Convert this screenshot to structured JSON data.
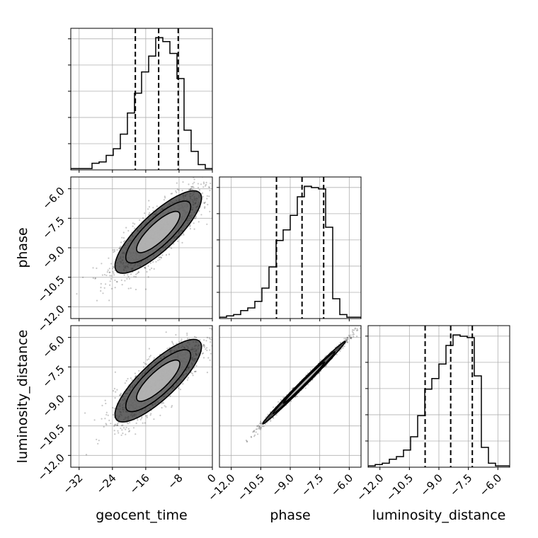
{
  "chart_data": {
    "type": "corner",
    "parameters": [
      "geocent_time",
      "phase",
      "luminosity_distance"
    ],
    "xlabels": [
      "geocent_time",
      "phase",
      "luminosity_distance"
    ],
    "ylabels": [
      "",
      "phase",
      "luminosity_distance"
    ],
    "ranges": {
      "geocent_time": [
        -34,
        0
      ],
      "phase": [
        -12.6,
        -5.4
      ],
      "luminosity_distance": [
        -12.6,
        -5.4
      ]
    },
    "ticks": {
      "geocent_time": [
        "-32",
        "-24",
        "-16",
        "-8",
        "0"
      ],
      "phase": [
        "-12.0",
        "-10.5",
        "-9.0",
        "-7.5",
        "-6.0"
      ],
      "luminosity_distance": [
        "-12.0",
        "-10.5",
        "-9.0",
        "-7.5",
        "-6.0"
      ]
    },
    "grid": true,
    "quantiles": {
      "geocent_time": [
        -18.5,
        -12.9,
        -8.2
      ],
      "phase": [
        -9.7,
        -8.4,
        -7.3
      ],
      "luminosity_distance": [
        -9.7,
        -8.4,
        -7.3
      ]
    },
    "histograms": {
      "geocent_time": {
        "bin_edges": [
          -34,
          -32.3,
          -30.6,
          -28.9,
          -27.2,
          -25.5,
          -23.8,
          -22.1,
          -20.4,
          -18.7,
          -17,
          -15.3,
          -13.6,
          -11.9,
          -10.2,
          -8.5,
          -6.8,
          -5.1,
          -3.4,
          -1.7,
          0
        ],
        "counts": [
          0.01,
          0.01,
          0.01,
          0.05,
          0.06,
          0.11,
          0.16,
          0.27,
          0.43,
          0.58,
          0.74,
          0.86,
          1.0,
          0.97,
          0.88,
          0.69,
          0.3,
          0.14,
          0.04,
          0.01
        ]
      },
      "phase": {
        "bin_edges": [
          -12.6,
          -12.24,
          -11.88,
          -11.52,
          -11.16,
          -10.8,
          -10.44,
          -10.08,
          -9.72,
          -9.36,
          -9.0,
          -8.64,
          -8.28,
          -7.92,
          -7.56,
          -7.2,
          -6.84,
          -6.48,
          -6.12,
          -5.76,
          -5.4
        ],
        "counts": [
          0.01,
          0.02,
          0.03,
          0.06,
          0.08,
          0.13,
          0.23,
          0.39,
          0.59,
          0.67,
          0.78,
          0.92,
          1.0,
          0.99,
          0.98,
          0.69,
          0.15,
          0.03,
          0.01,
          0.01
        ]
      },
      "luminosity_distance": {
        "bin_edges": [
          -12.6,
          -12.24,
          -11.88,
          -11.52,
          -11.16,
          -10.8,
          -10.44,
          -10.08,
          -9.72,
          -9.36,
          -9.0,
          -8.64,
          -8.28,
          -7.92,
          -7.56,
          -7.2,
          -6.84,
          -6.48,
          -6.12,
          -5.76,
          -5.4
        ],
        "counts": [
          0.01,
          0.02,
          0.03,
          0.06,
          0.08,
          0.13,
          0.23,
          0.39,
          0.59,
          0.67,
          0.78,
          0.92,
          1.0,
          0.99,
          0.98,
          0.69,
          0.15,
          0.03,
          0.01,
          0.01
        ]
      }
    },
    "joint_2d": [
      {
        "x": "geocent_time",
        "y": "phase",
        "mean": [
          -13.0,
          -8.2
        ],
        "std": [
          5.2,
          1.05
        ],
        "corr": 0.82
      },
      {
        "x": "geocent_time",
        "y": "luminosity_distance",
        "mean": [
          -13.0,
          -8.2
        ],
        "std": [
          5.2,
          1.05
        ],
        "corr": 0.82
      },
      {
        "x": "phase",
        "y": "luminosity_distance",
        "mean": [
          -8.3,
          -8.3
        ],
        "std": [
          1.05,
          1.05
        ],
        "corr": 0.995
      }
    ],
    "contour_levels_sigma": [
      1,
      1.5,
      2
    ]
  }
}
